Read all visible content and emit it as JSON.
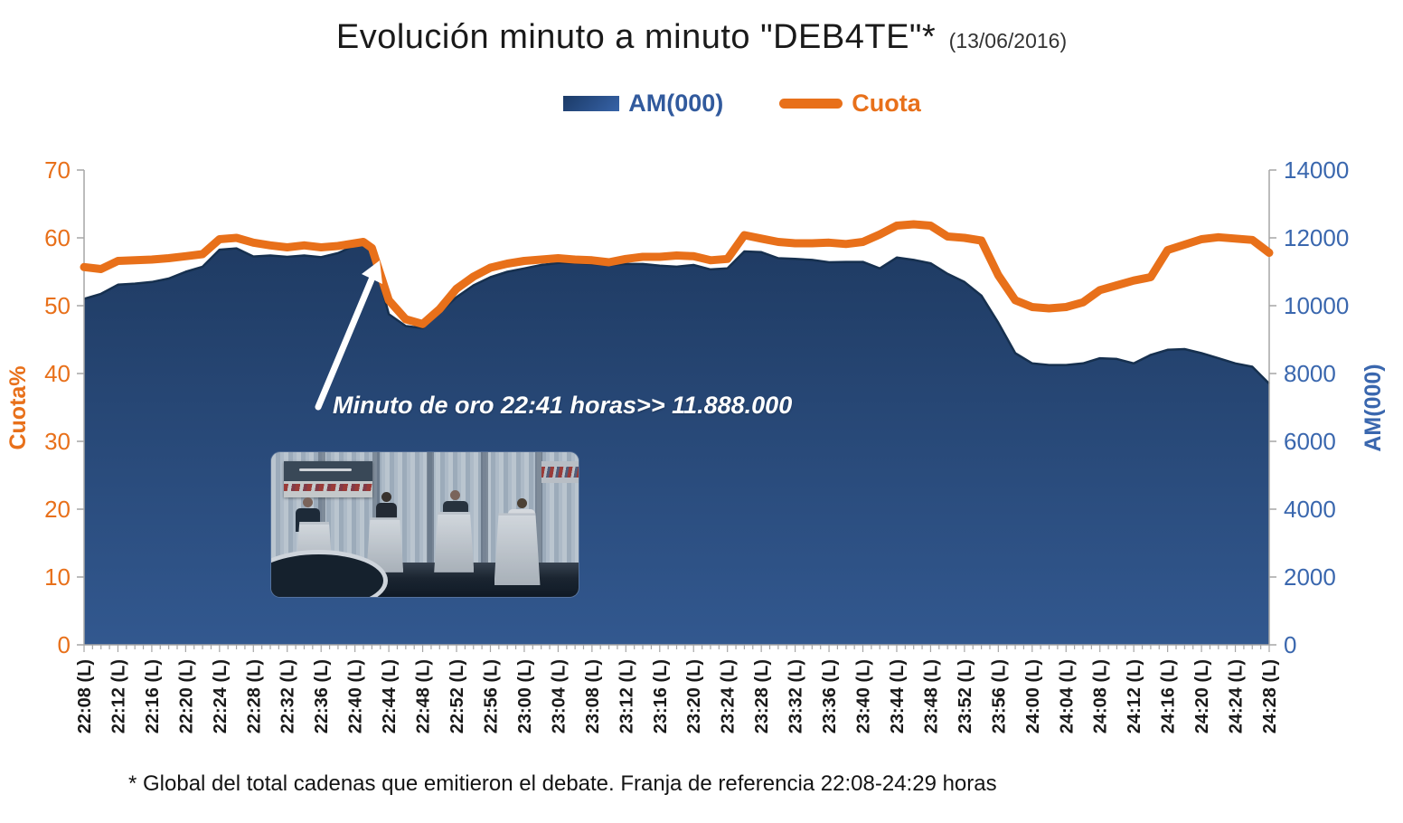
{
  "title": {
    "main": "Evolución minuto a minuto \"DEB4TE\"*",
    "date": "(13/06/2016)"
  },
  "legend": {
    "am_label": "AM(000)",
    "cuota_label": "Cuota",
    "am_color": "#315A9D",
    "cuota_color": "#E8701A"
  },
  "annotation": {
    "text": "Minuto de oro 22:41 horas>> 11.888.000"
  },
  "footnote": "* Global del total cadenas que emitieron el debate. Franja de referencia 22:08-24:29 horas",
  "chart_data": {
    "type": "area+line",
    "title": "Evolución minuto a minuto \"DEB4TE\"* (13/06/2016)",
    "x": [
      "22:08",
      "22:10",
      "22:12",
      "22:14",
      "22:16",
      "22:18",
      "22:20",
      "22:22",
      "22:24",
      "22:26",
      "22:28",
      "22:30",
      "22:32",
      "22:34",
      "22:36",
      "22:38",
      "22:40",
      "22:41",
      "22:42",
      "22:44",
      "22:46",
      "22:48",
      "22:50",
      "22:52",
      "22:54",
      "22:56",
      "22:58",
      "23:00",
      "23:02",
      "23:04",
      "23:06",
      "23:08",
      "23:10",
      "23:12",
      "23:14",
      "23:16",
      "23:18",
      "23:20",
      "23:22",
      "23:24",
      "23:26",
      "23:28",
      "23:30",
      "23:32",
      "23:34",
      "23:36",
      "23:38",
      "23:40",
      "23:42",
      "23:44",
      "23:46",
      "23:48",
      "23:50",
      "23:52",
      "23:54",
      "23:56",
      "23:58",
      "24:00",
      "24:02",
      "24:04",
      "24:06",
      "24:08",
      "24:10",
      "24:12",
      "24:14",
      "24:16",
      "24:18",
      "24:20",
      "24:22",
      "24:24",
      "24:26",
      "24:28"
    ],
    "x_tick_labels": [
      "22:08 (L)",
      "22:12 (L)",
      "22:16 (L)",
      "22:20 (L)",
      "22:24 (L)",
      "22:28 (L)",
      "22:32 (L)",
      "22:36 (L)",
      "22:40 (L)",
      "22:44 (L)",
      "22:48 (L)",
      "22:52 (L)",
      "22:56 (L)",
      "23:00 (L)",
      "23:04 (L)",
      "23:08 (L)",
      "23:12 (L)",
      "23:16 (L)",
      "23:20 (L)",
      "23:24 (L)",
      "23:28 (L)",
      "23:32 (L)",
      "23:36 (L)",
      "23:40 (L)",
      "23:44 (L)",
      "23:48 (L)",
      "23:52 (L)",
      "23:56 (L)",
      "24:00 (L)",
      "24:04 (L)",
      "24:08 (L)",
      "24:12 (L)",
      "24:16 (L)",
      "24:20 (L)",
      "24:24 (L)",
      "24:28 (L)"
    ],
    "series": [
      {
        "name": "AM(000)",
        "type": "area",
        "axis": "right",
        "color_top": "#1F3B63",
        "color_bottom": "#32588F",
        "edge_color": "#16304F",
        "values": [
          10200,
          10350,
          10620,
          10650,
          10700,
          10800,
          11000,
          11150,
          11650,
          11690,
          11450,
          11480,
          11440,
          11480,
          11430,
          11550,
          11780,
          11888,
          11600,
          9750,
          9400,
          9340,
          9800,
          10250,
          10600,
          10840,
          11000,
          11100,
          11200,
          11260,
          11260,
          11230,
          11200,
          11230,
          11230,
          11180,
          11150,
          11200,
          11070,
          11100,
          11600,
          11580,
          11400,
          11380,
          11350,
          11280,
          11290,
          11290,
          11100,
          11420,
          11350,
          11250,
          10940,
          10700,
          10300,
          9500,
          8600,
          8300,
          8250,
          8250,
          8300,
          8450,
          8430,
          8300,
          8550,
          8700,
          8720,
          8600,
          8450,
          8300,
          8200,
          7700
        ]
      },
      {
        "name": "Cuota",
        "type": "line",
        "axis": "left",
        "color": "#E8701A",
        "values": [
          55.7,
          55.4,
          56.6,
          56.7,
          56.8,
          57.0,
          57.3,
          57.6,
          59.8,
          60.0,
          59.3,
          58.9,
          58.6,
          58.9,
          58.6,
          58.8,
          59.2,
          59.4,
          58.5,
          50.8,
          48.0,
          47.3,
          49.5,
          52.5,
          54.3,
          55.6,
          56.2,
          56.6,
          56.8,
          57.0,
          56.8,
          56.7,
          56.4,
          56.9,
          57.2,
          57.2,
          57.4,
          57.3,
          56.7,
          56.9,
          60.4,
          59.9,
          59.4,
          59.2,
          59.2,
          59.3,
          59.1,
          59.4,
          60.5,
          61.8,
          62.0,
          61.8,
          60.2,
          60.0,
          59.6,
          54.5,
          50.8,
          49.8,
          49.6,
          49.8,
          50.5,
          52.3,
          53.0,
          53.7,
          54.2,
          58.2,
          59.0,
          59.8,
          60.1,
          59.9,
          59.7,
          57.8
        ]
      }
    ],
    "left_axis": {
      "title": "Cuota%",
      "min": 0,
      "max": 70,
      "step": 10,
      "color": "#E8701A"
    },
    "right_axis": {
      "title": "AM(000)",
      "min": 0,
      "max": 14000,
      "step": 2000,
      "color": "#3A67AE"
    },
    "golden_minute": {
      "time": "22:41",
      "am": 11888
    },
    "grid": false,
    "legend_position": "top"
  }
}
